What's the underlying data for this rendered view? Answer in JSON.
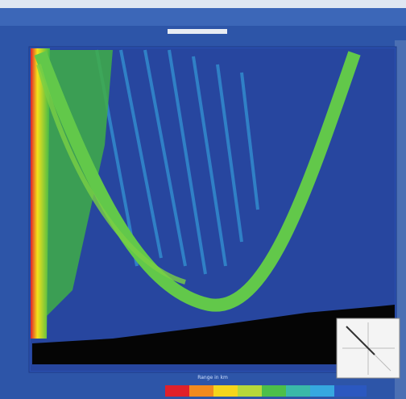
{
  "plot": {
    "x_axis_label": "Range in km"
  }
}
